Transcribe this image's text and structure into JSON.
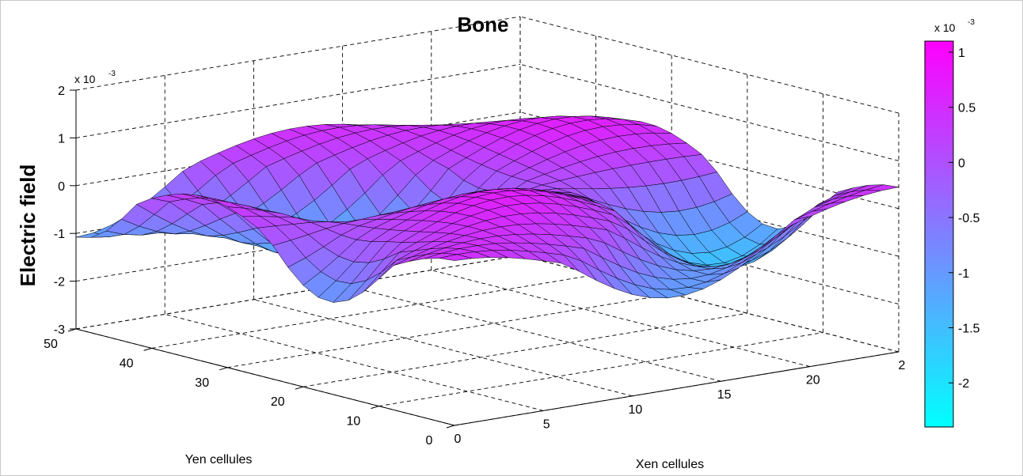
{
  "chart_data": {
    "type": "surface",
    "title": "Bone",
    "zlabel": "Electric field",
    "xlabel": "Xen cellules",
    "ylabel": "Yen cellules",
    "z_exponent": "x 10",
    "z_exponent_power": "-3",
    "z_ticks": [
      "2",
      "1",
      "0",
      "-1",
      "-2",
      "-3"
    ],
    "x_ticks": [
      "0",
      "5",
      "10",
      "15",
      "20",
      "2"
    ],
    "y_ticks": [
      "0",
      "10",
      "20",
      "30",
      "40",
      "50"
    ],
    "xlim": [
      0,
      25
    ],
    "ylim": [
      0,
      50
    ],
    "zlim": [
      -0.003,
      0.002
    ],
    "grid": true,
    "colormap": "cool",
    "colormap_start": "#00ffff",
    "colormap_end": "#ff00ff",
    "colorbar": {
      "exponent": "x 10",
      "exponent_power": "-3",
      "ticks": [
        "1",
        "0.5",
        "0",
        "-0.5",
        "-1",
        "-1.5",
        "-2"
      ],
      "range": [
        -0.0024,
        0.0011
      ]
    },
    "surface": {
      "nx": 25,
      "ny": 25,
      "formula_note": "z = sin(2*pi*x/25) * sin(2*pi*y/50) shaped field, visible as alternating peaks and troughs",
      "x": [
        0,
        25
      ],
      "y": [
        0,
        50
      ],
      "peak_z": 0.001,
      "trough_z": -0.0024
    }
  }
}
